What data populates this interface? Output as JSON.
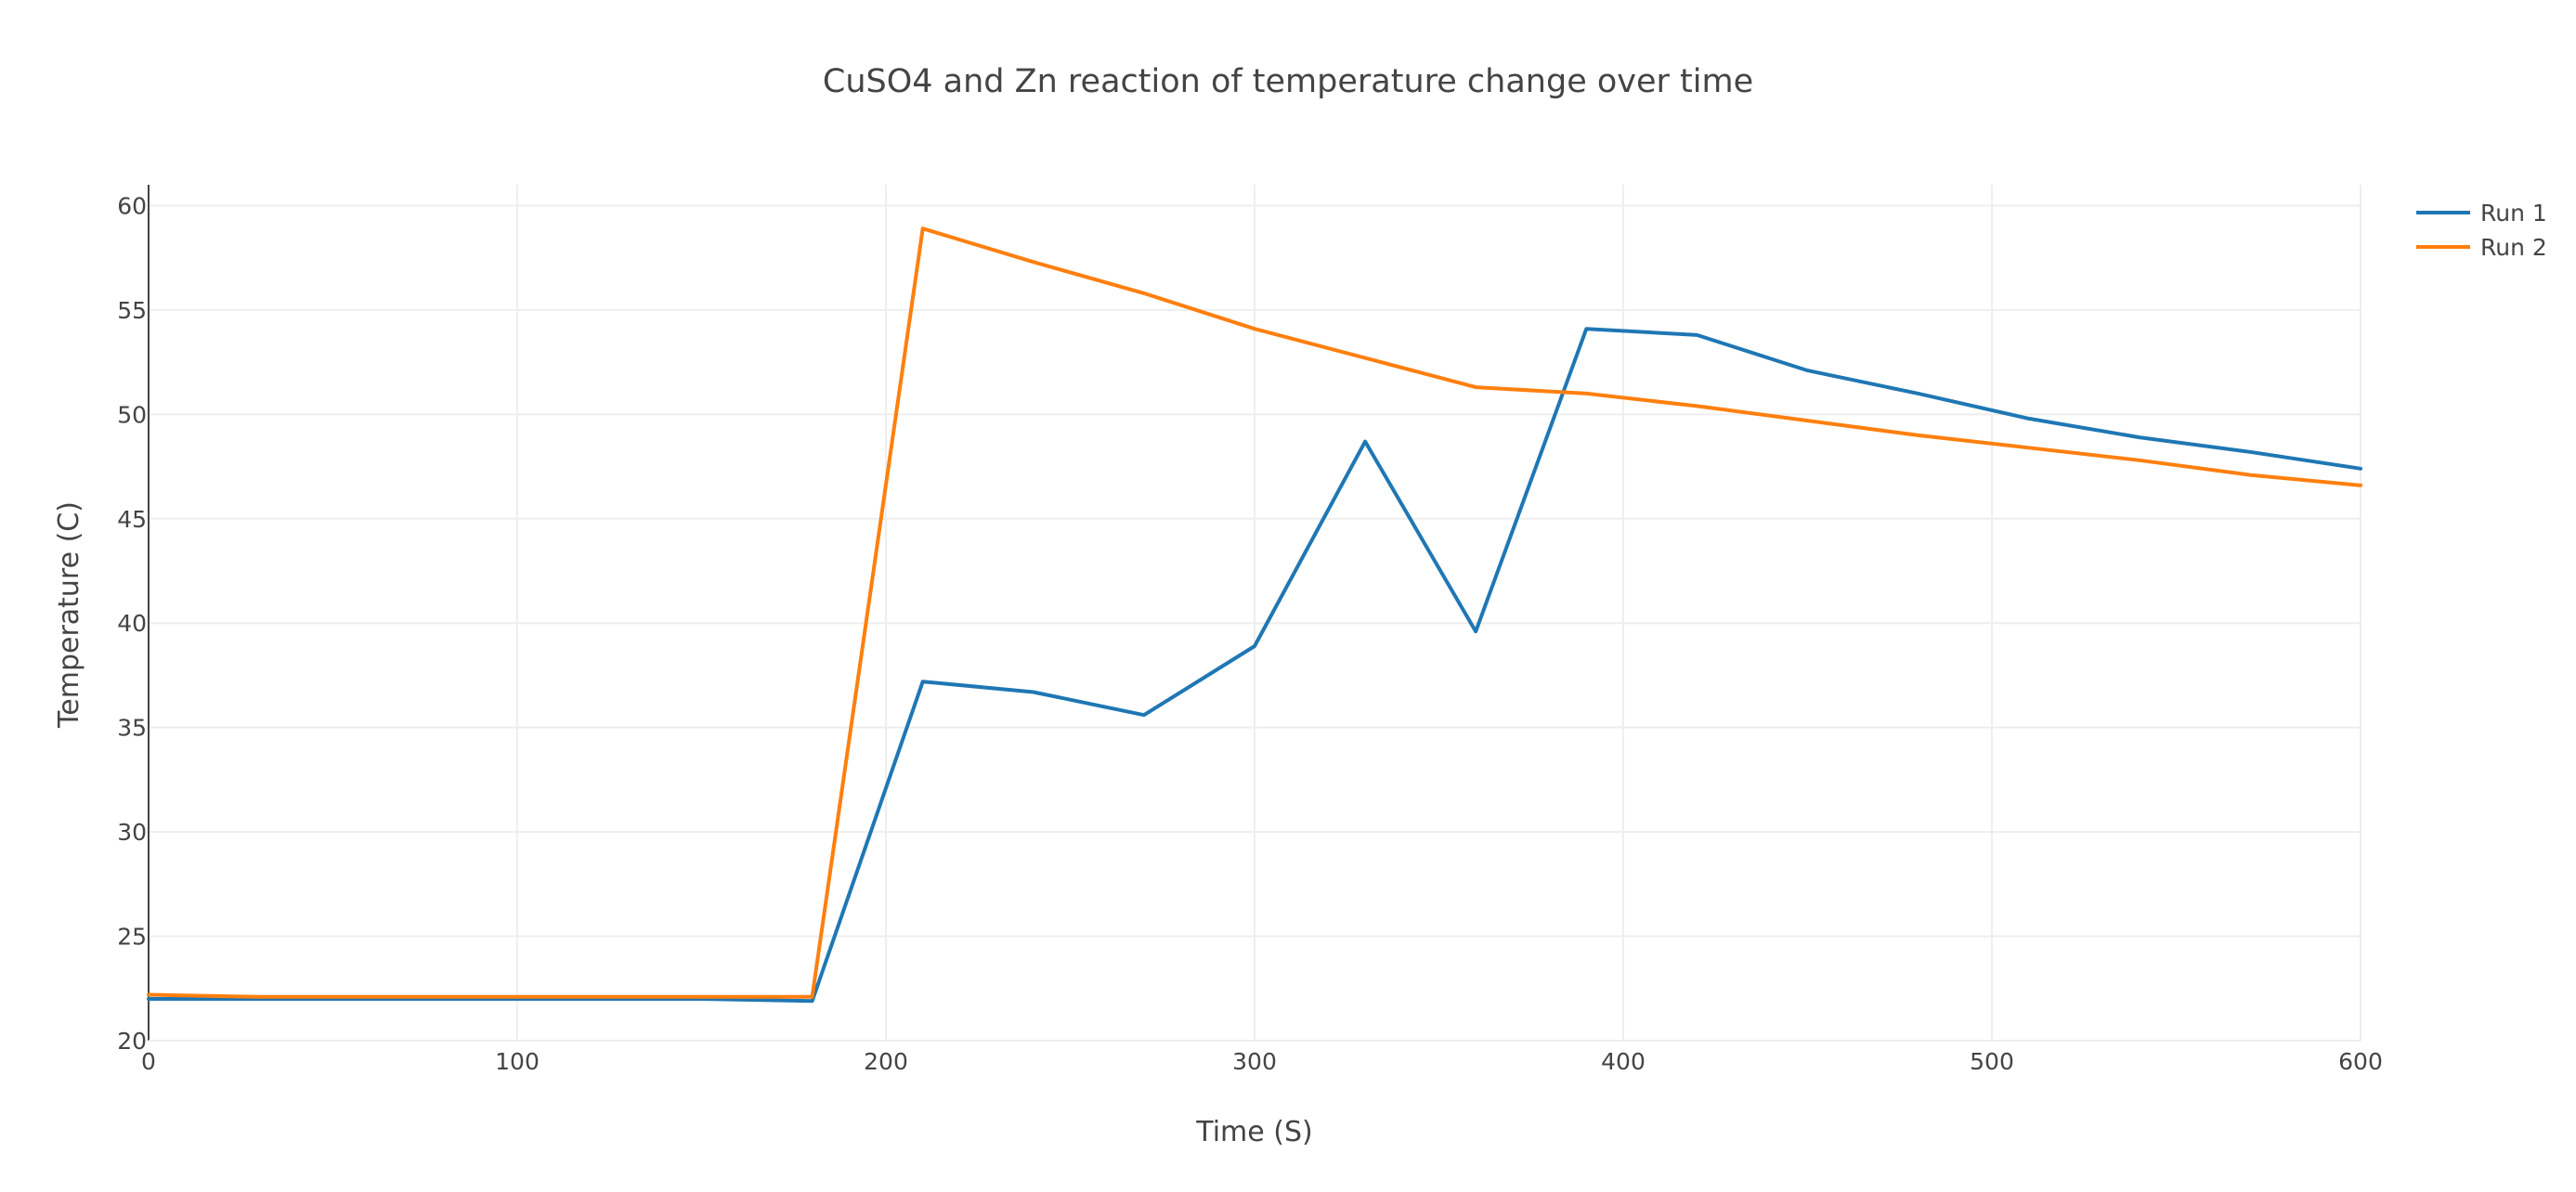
{
  "chart_data": {
    "type": "line",
    "title": "CuSO4 and Zn reaction of temperature change over time",
    "xlabel": "Time (S)",
    "ylabel": "Temperature (C)",
    "xlim": [
      0,
      600
    ],
    "ylim": [
      20,
      61
    ],
    "xticks": [
      0,
      100,
      200,
      300,
      400,
      500,
      600
    ],
    "yticks": [
      20,
      25,
      30,
      35,
      40,
      45,
      50,
      55,
      60
    ],
    "grid": true,
    "legend_position": "top-right",
    "x": [
      0,
      30,
      60,
      90,
      120,
      150,
      180,
      210,
      240,
      270,
      300,
      330,
      360,
      390,
      420,
      450,
      480,
      510,
      540,
      570,
      600
    ],
    "series": [
      {
        "name": "Run 1",
        "color": "#1f77b4",
        "values": [
          22.0,
          22.0,
          22.0,
          22.0,
          22.0,
          22.0,
          21.9,
          37.2,
          36.7,
          35.6,
          38.9,
          48.7,
          39.6,
          54.1,
          53.8,
          52.1,
          51.0,
          49.8,
          48.9,
          48.2,
          47.4
        ]
      },
      {
        "name": "Run 2",
        "color": "#ff7f0e",
        "values": [
          22.2,
          22.1,
          22.1,
          22.1,
          22.1,
          22.1,
          22.1,
          58.9,
          57.3,
          55.8,
          54.1,
          52.7,
          51.3,
          51.0,
          50.4,
          49.7,
          49.0,
          48.4,
          47.8,
          47.1,
          46.6
        ]
      }
    ]
  }
}
